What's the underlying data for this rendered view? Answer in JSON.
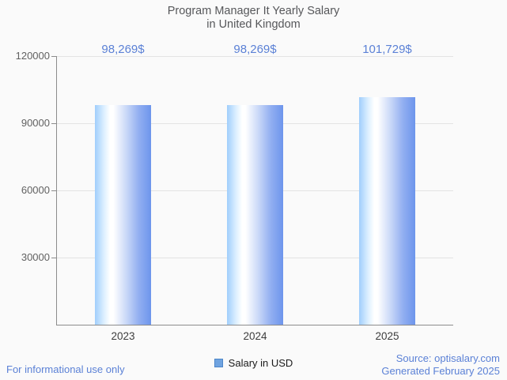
{
  "title": {
    "line1": "Program Manager It Yearly Salary",
    "line2": "in United Kingdom"
  },
  "chart_data": {
    "type": "bar",
    "title": "Program Manager It Yearly Salary in United Kingdom",
    "categories": [
      "2023",
      "2024",
      "2025"
    ],
    "values": [
      98269,
      98269,
      101729
    ],
    "value_labels": [
      "98,269$",
      "98,269$",
      "101,729$"
    ],
    "series_name": "Salary in USD",
    "xlabel": "",
    "ylabel": "",
    "ylim": [
      0,
      120000
    ],
    "yticks": [
      30000,
      60000,
      90000,
      120000
    ],
    "ytick_labels": [
      "30000",
      "60000",
      "90000",
      "120000"
    ],
    "grid": true,
    "legend_position": "bottom"
  },
  "legend": {
    "label": "Salary in USD",
    "swatch_color": "#6fa3e0"
  },
  "footer": {
    "left": "For informational use only",
    "source": "Source: optisalary.com",
    "generated": "Generated February 2025"
  },
  "colors": {
    "background": "#fafafa",
    "accent_blue": "#5b81d6",
    "axis_gray": "#8c8c8c",
    "gridline_gray": "#e3e3e3",
    "bar_gradient_left": "#a0cefc",
    "bar_gradient_mid": "#ffffff",
    "bar_gradient_right": "#6d95ec",
    "title_gray": "#56575a"
  }
}
